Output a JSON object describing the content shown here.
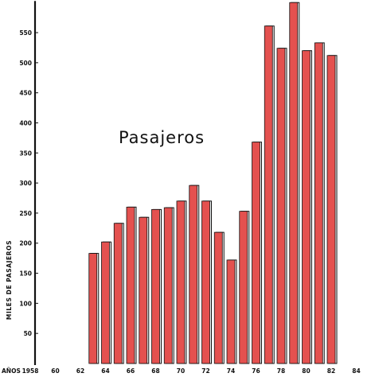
{
  "chart_data": {
    "type": "bar",
    "title": "Pasajeros",
    "ylabel": "MILES DE PASAJEROS",
    "x_axis_prefix": "AÑOS",
    "x_tick_labels": [
      "1958",
      "60",
      "62",
      "64",
      "66",
      "68",
      "70",
      "72",
      "74",
      "76",
      "78",
      "80",
      "82",
      "84"
    ],
    "y_tick_labels": [
      "50",
      "100",
      "150",
      "200",
      "250",
      "300",
      "350",
      "400",
      "450",
      "500",
      "550"
    ],
    "ylim": [
      0,
      600
    ],
    "xlim": [
      1957.5,
      1984.5
    ],
    "bar_color": "#e4514f",
    "series": [
      {
        "x": [
          1963,
          1964,
          1965,
          1966,
          1967,
          1968,
          1969,
          1970,
          1971,
          1972,
          1973,
          1974,
          1975,
          1976,
          1977,
          1978,
          1979,
          1980,
          1981,
          1982
        ],
        "values": [
          183,
          202,
          233,
          260,
          243,
          256,
          259,
          270,
          296,
          270,
          218,
          172,
          253,
          368,
          561,
          524,
          600,
          520,
          533,
          512
        ]
      }
    ],
    "grid": false,
    "legend": "none"
  }
}
